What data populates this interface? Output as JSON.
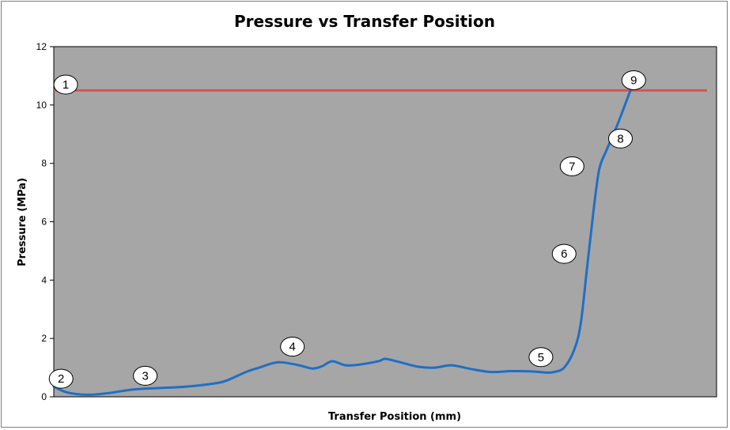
{
  "chart_data": {
    "type": "line",
    "title": "Pressure vs Transfer Position",
    "xlabel": "Transfer Position (mm)",
    "ylabel": "Pressure (MPa)",
    "ylim": [
      0,
      12
    ],
    "yticks": [
      0,
      2,
      4,
      6,
      8,
      10,
      12
    ],
    "x_ticks_shown": false,
    "grid": false,
    "plot_background": "#a6a6a6",
    "threshold": {
      "y": 10.5,
      "color": "#d9534f"
    },
    "series": [
      {
        "color": "#1f6fc5",
        "points": [
          [
            0.0,
            0.35
          ],
          [
            0.02,
            0.15
          ],
          [
            0.05,
            0.07
          ],
          [
            0.08,
            0.12
          ],
          [
            0.12,
            0.25
          ],
          [
            0.16,
            0.3
          ],
          [
            0.2,
            0.35
          ],
          [
            0.24,
            0.45
          ],
          [
            0.26,
            0.55
          ],
          [
            0.29,
            0.85
          ],
          [
            0.31,
            1.0
          ],
          [
            0.33,
            1.15
          ],
          [
            0.345,
            1.18
          ],
          [
            0.37,
            1.08
          ],
          [
            0.39,
            0.97
          ],
          [
            0.405,
            1.05
          ],
          [
            0.42,
            1.22
          ],
          [
            0.44,
            1.08
          ],
          [
            0.46,
            1.1
          ],
          [
            0.49,
            1.22
          ],
          [
            0.5,
            1.3
          ],
          [
            0.52,
            1.2
          ],
          [
            0.55,
            1.03
          ],
          [
            0.575,
            1.0
          ],
          [
            0.6,
            1.08
          ],
          [
            0.63,
            0.95
          ],
          [
            0.66,
            0.85
          ],
          [
            0.69,
            0.88
          ],
          [
            0.72,
            0.87
          ],
          [
            0.745,
            0.83
          ],
          [
            0.755,
            0.85
          ],
          [
            0.77,
            1.0
          ],
          [
            0.785,
            1.6
          ],
          [
            0.795,
            2.5
          ],
          [
            0.805,
            4.5
          ],
          [
            0.815,
            6.5
          ],
          [
            0.823,
            7.8
          ],
          [
            0.833,
            8.4
          ],
          [
            0.85,
            9.3
          ],
          [
            0.87,
            10.5
          ]
        ]
      }
    ],
    "annotations": [
      {
        "label": "1",
        "x": 0.018,
        "y": 10.7
      },
      {
        "label": "2",
        "x": 0.011,
        "y": 0.62
      },
      {
        "label": "3",
        "x": 0.138,
        "y": 0.72
      },
      {
        "label": "4",
        "x": 0.36,
        "y": 1.72
      },
      {
        "label": "5",
        "x": 0.735,
        "y": 1.36
      },
      {
        "label": "6",
        "x": 0.77,
        "y": 4.9
      },
      {
        "label": "7",
        "x": 0.782,
        "y": 7.9
      },
      {
        "label": "8",
        "x": 0.855,
        "y": 8.85
      },
      {
        "label": "9",
        "x": 0.875,
        "y": 10.85
      }
    ]
  }
}
